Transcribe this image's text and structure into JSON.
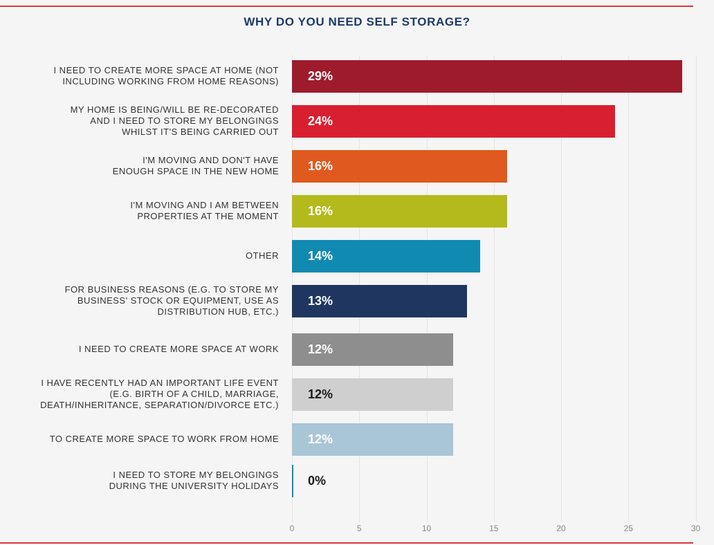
{
  "chart_data": {
    "type": "bar",
    "orientation": "horizontal",
    "title": "WHY DO YOU NEED SELF STORAGE?",
    "xlim": [
      0,
      30
    ],
    "x_ticks": [
      "0",
      "5",
      "10",
      "15",
      "20",
      "25",
      "30"
    ],
    "grid": true,
    "categories": [
      "I NEED TO CREATE MORE SPACE AT HOME (NOT\nINCLUDING WORKING FROM HOME REASONS)",
      "MY HOME IS BEING/WILL BE RE-DECORATED\nAND I NEED TO STORE MY BELONGINGS\nWHILST IT'S BEING CARRIED OUT",
      "I'M MOVING AND DON'T HAVE\nENOUGH SPACE IN THE NEW HOME",
      "I'M MOVING AND I AM BETWEEN\nPROPERTIES AT THE MOMENT",
      "OTHER",
      "FOR BUSINESS REASONS (E.G. TO STORE MY\nBUSINESS' STOCK OR EQUIPMENT, USE AS\nDISTRIBUTION HUB, ETC.)",
      "I NEED TO CREATE MORE SPACE AT WORK",
      "I HAVE RECENTLY HAD AN IMPORTANT LIFE EVENT\n(E.G. BIRTH OF A CHILD, MARRIAGE,\nDEATH/INHERITANCE, SEPARATION/DIVORCE ETC.)",
      "TO CREATE MORE SPACE TO WORK FROM HOME",
      "I NEED TO STORE MY BELONGINGS\nDURING THE UNIVERSITY HOLIDAYS"
    ],
    "values": [
      29,
      24,
      16,
      16,
      14,
      13,
      12,
      12,
      12,
      0
    ],
    "value_labels": [
      "29%",
      "24%",
      "16%",
      "16%",
      "14%",
      "13%",
      "12%",
      "12%",
      "12%",
      "0%"
    ],
    "colors": [
      "#9e1b2c",
      "#d81f2f",
      "#e05a1f",
      "#b4ba1c",
      "#118ab2",
      "#1f3760",
      "#8e8e8e",
      "#cfcfcf",
      "#a8c6d6",
      "#118ab2"
    ],
    "label_colors": [
      "#ffffff",
      "#ffffff",
      "#ffffff",
      "#ffffff",
      "#ffffff",
      "#ffffff",
      "#ffffff",
      "#1a1a1a",
      "#ffffff",
      "#1a1a1a"
    ]
  }
}
